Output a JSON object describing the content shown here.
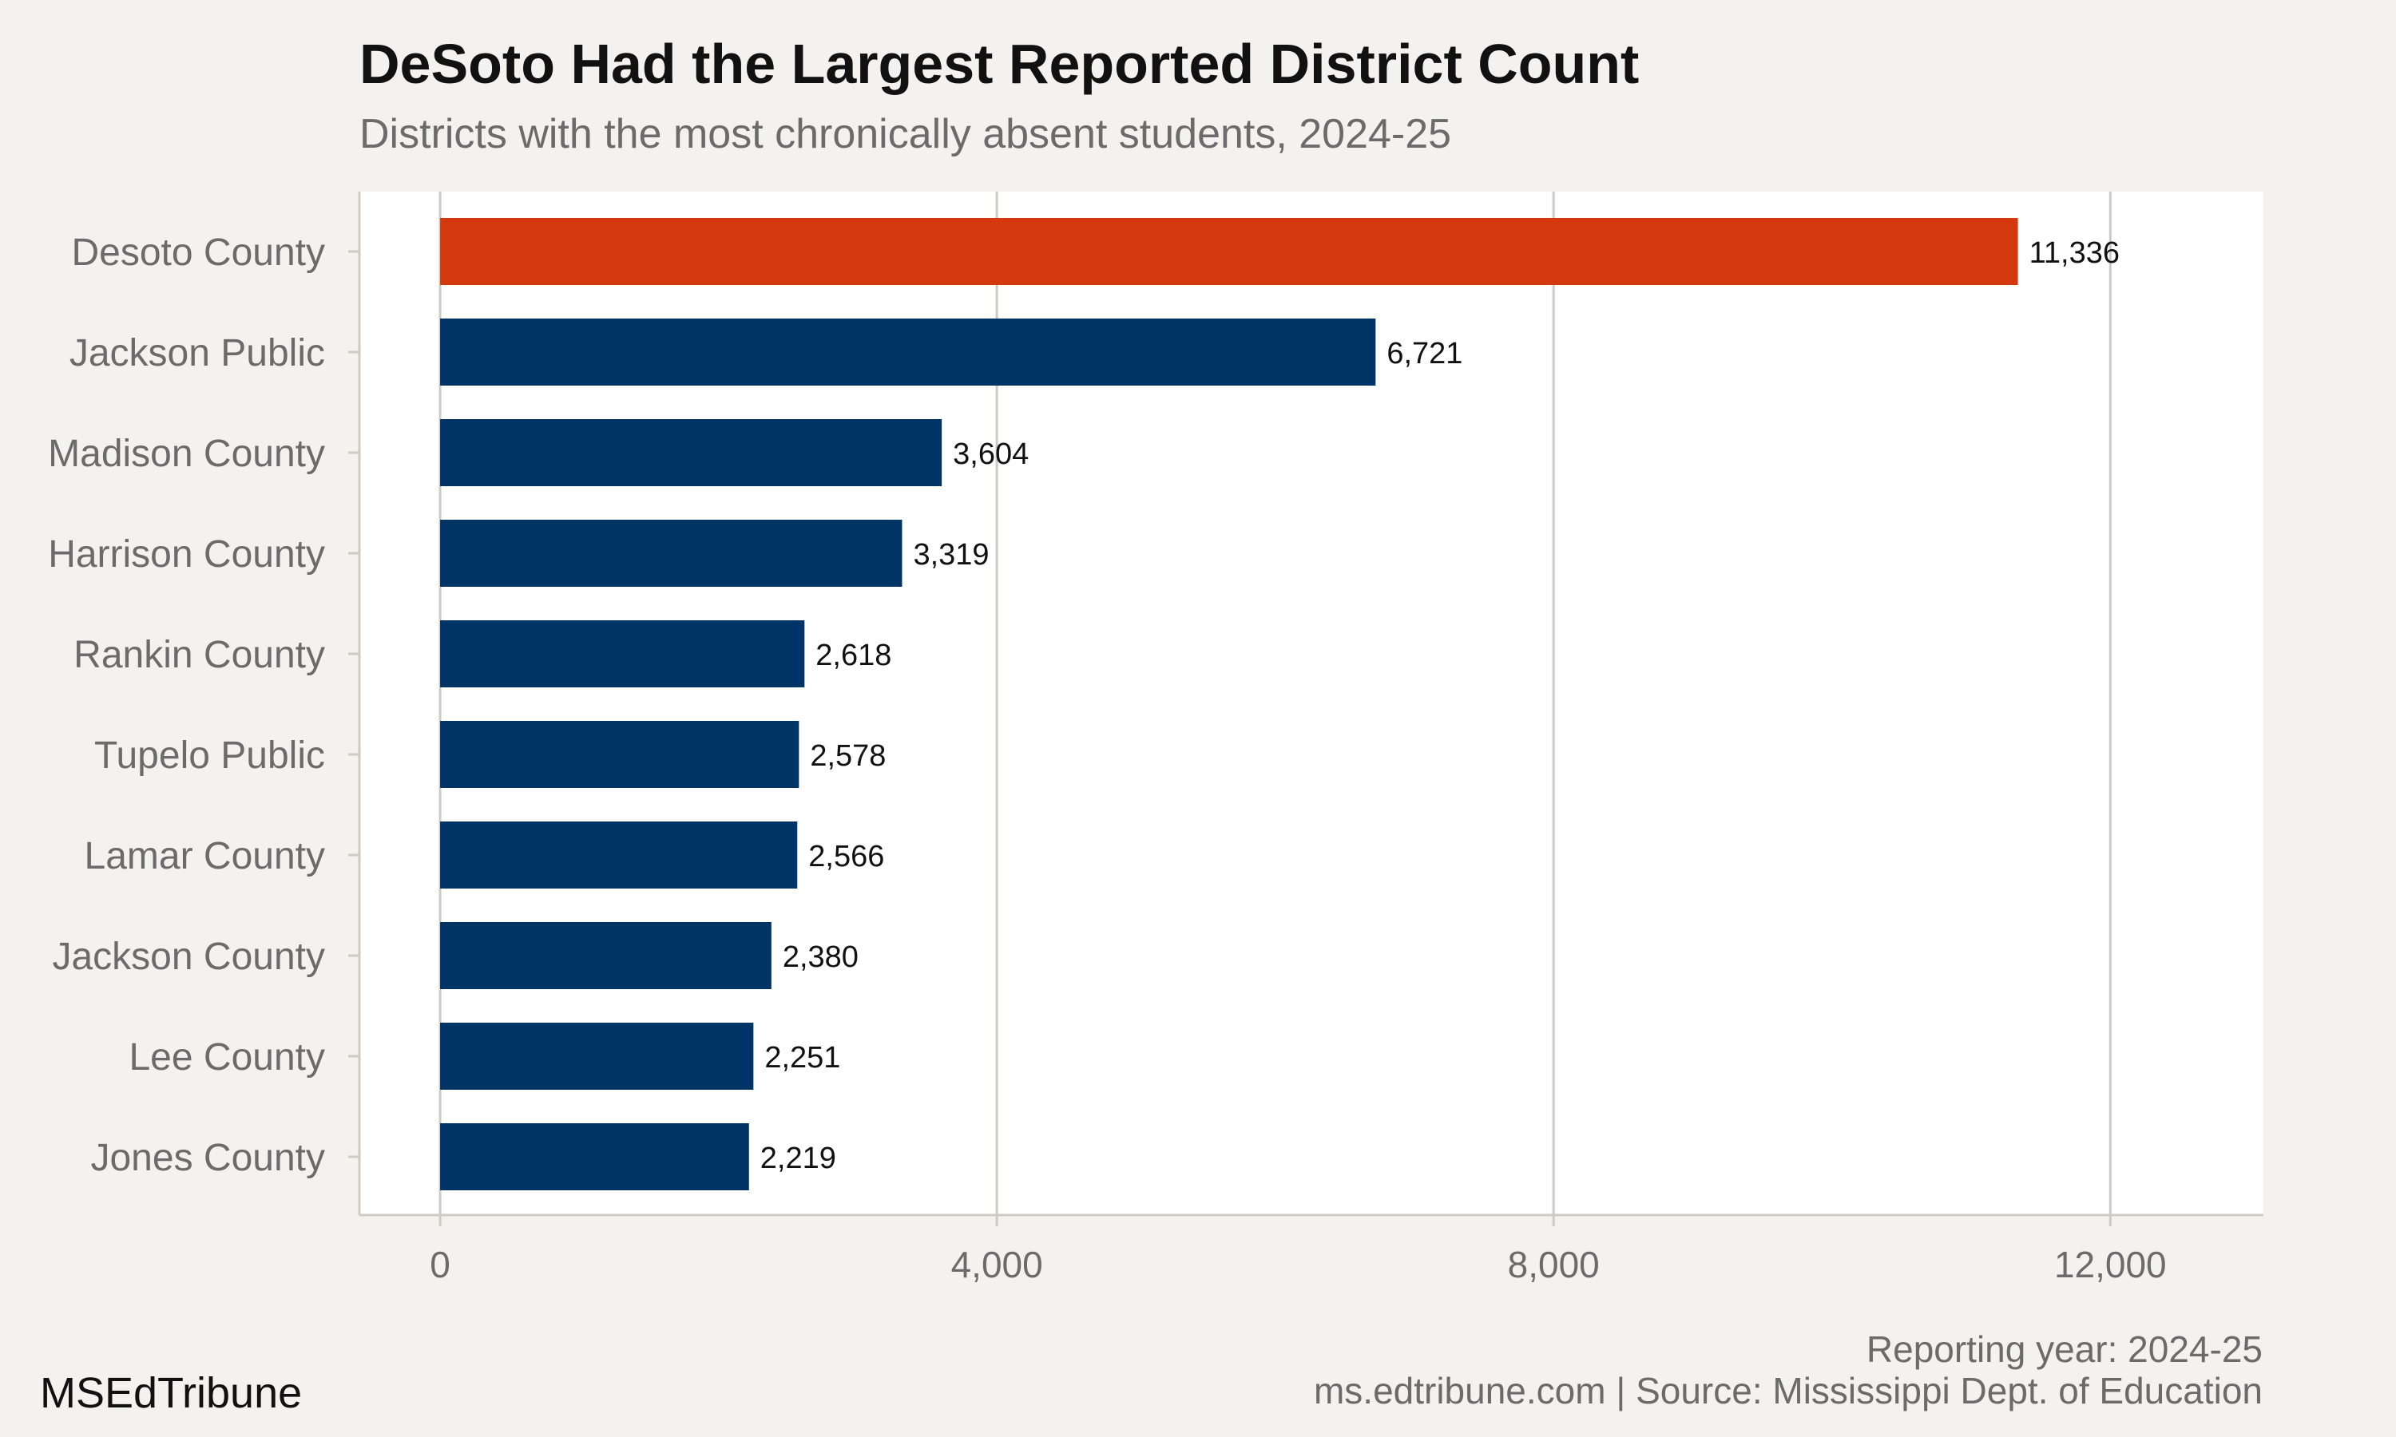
{
  "header": {
    "title": "DeSoto Had the Largest Reported District Count",
    "subtitle": "Districts with the most chronically absent students, 2024-25"
  },
  "footer": {
    "reporting_year": "Reporting year: 2024-25",
    "source": "ms.edtribune.com | Source: Mississippi Dept. of Education",
    "brand": "MSEdTribune"
  },
  "colors": {
    "highlight": "#d4380d",
    "bar": "#003366",
    "background": "#f4f2ee",
    "panel": "#ffffff",
    "grid": "#cfcac2"
  },
  "chart_data": {
    "type": "bar",
    "orientation": "horizontal",
    "categories": [
      "Desoto County",
      "Jackson Public",
      "Madison County",
      "Harrison County",
      "Rankin County",
      "Tupelo Public",
      "Lamar County",
      "Jackson County",
      "Lee County",
      "Jones County"
    ],
    "values": [
      11336,
      6721,
      3604,
      3319,
      2618,
      2578,
      2566,
      2380,
      2251,
      2219
    ],
    "value_labels": [
      "11,336",
      "6,721",
      "3,604",
      "3,319",
      "2,618",
      "2,578",
      "2,566",
      "2,380",
      "2,251",
      "2,219"
    ],
    "highlight_index": 0,
    "xticks": [
      0,
      4000,
      8000,
      12000
    ],
    "xtick_labels": [
      "0",
      "4,000",
      "8,000",
      "12,000"
    ],
    "xlim": [
      -580,
      13100
    ],
    "grid": true,
    "legend": false
  }
}
